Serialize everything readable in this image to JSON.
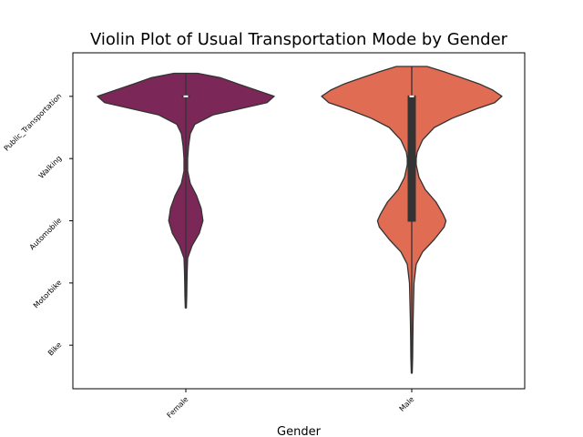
{
  "chart_data": {
    "type": "violin",
    "title": "Violin Plot of Usual Transportation Mode by Gender",
    "xlabel": "Gender",
    "ylabel": "",
    "categories": [
      "Female",
      "Male"
    ],
    "y_categories": [
      "Public_Transportation",
      "Walking",
      "Automobile",
      "Motorbike",
      "Bike"
    ],
    "y_codes": [
      0,
      1,
      2,
      3,
      4
    ],
    "ylim": [
      4.7,
      -0.7
    ],
    "grid": false,
    "legend": "none",
    "series": [
      {
        "category": "Female",
        "color": "#7b2858",
        "range": [
          -0.37,
          3.4
        ],
        "median": 0,
        "quartiles": [
          0,
          0
        ],
        "density": [
          [
            -0.37,
            0.13
          ],
          [
            -0.3,
            0.38
          ],
          [
            -0.2,
            0.58
          ],
          [
            -0.1,
            0.78
          ],
          [
            0.0,
            0.98
          ],
          [
            0.1,
            0.9
          ],
          [
            0.2,
            0.6
          ],
          [
            0.3,
            0.3
          ],
          [
            0.45,
            0.1
          ],
          [
            0.6,
            0.05
          ],
          [
            0.8,
            0.03
          ],
          [
            1.0,
            0.02
          ],
          [
            1.2,
            0.02
          ],
          [
            1.4,
            0.05
          ],
          [
            1.6,
            0.12
          ],
          [
            1.8,
            0.17
          ],
          [
            2.0,
            0.19
          ],
          [
            2.2,
            0.15
          ],
          [
            2.4,
            0.07
          ],
          [
            2.6,
            0.02
          ],
          [
            2.8,
            0.015
          ],
          [
            3.0,
            0.012
          ],
          [
            3.2,
            0.01
          ],
          [
            3.4,
            0.006
          ]
        ]
      },
      {
        "category": "Male",
        "color": "#e06c53",
        "range": [
          -0.48,
          4.45
        ],
        "median": 0,
        "quartiles": [
          0,
          2
        ],
        "density": [
          [
            -0.48,
            0.17
          ],
          [
            -0.4,
            0.35
          ],
          [
            -0.3,
            0.55
          ],
          [
            -0.2,
            0.75
          ],
          [
            -0.1,
            0.9
          ],
          [
            0.0,
            1.0
          ],
          [
            0.1,
            0.92
          ],
          [
            0.2,
            0.72
          ],
          [
            0.35,
            0.45
          ],
          [
            0.5,
            0.25
          ],
          [
            0.7,
            0.12
          ],
          [
            0.9,
            0.06
          ],
          [
            1.0,
            0.05
          ],
          [
            1.1,
            0.05
          ],
          [
            1.3,
            0.08
          ],
          [
            1.5,
            0.15
          ],
          [
            1.7,
            0.27
          ],
          [
            1.9,
            0.35
          ],
          [
            2.0,
            0.38
          ],
          [
            2.1,
            0.36
          ],
          [
            2.3,
            0.25
          ],
          [
            2.5,
            0.12
          ],
          [
            2.7,
            0.05
          ],
          [
            3.0,
            0.025
          ],
          [
            3.3,
            0.02
          ],
          [
            3.6,
            0.015
          ],
          [
            3.9,
            0.012
          ],
          [
            4.2,
            0.01
          ],
          [
            4.45,
            0.005
          ]
        ]
      }
    ]
  }
}
